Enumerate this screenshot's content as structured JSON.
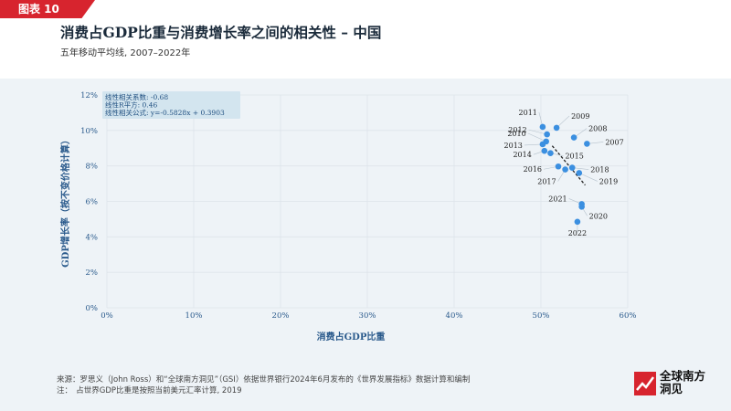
{
  "header": {
    "tag": "图表 10",
    "title": "消费占GDP比重与消费增长率之间的相关性 – 中国",
    "subtitle": "五年移动平均线, 2007–2022年"
  },
  "stats_box": {
    "line1": "线性相关系数: -0.68",
    "line2": "线性R平方: 0.46",
    "line3": "线性相关公式: y=-0.5828x + 0.3903"
  },
  "chart_data": {
    "type": "scatter",
    "xlabel": "消费占GDP比重",
    "ylabel": "GDP增长率（按不变价格计算）",
    "xlim": [
      0,
      0.6
    ],
    "ylim": [
      0,
      0.12
    ],
    "x_ticks": [
      "0%",
      "10%",
      "20%",
      "30%",
      "40%",
      "50%",
      "60%"
    ],
    "y_ticks": [
      "0%",
      "2%",
      "4%",
      "6%",
      "8%",
      "10%",
      "12%"
    ],
    "grid": true,
    "trendline": {
      "slope": -0.5828,
      "intercept": 0.3903,
      "x_range": [
        0.513,
        0.551
      ],
      "style": "dashed"
    },
    "points": [
      {
        "label": "2007",
        "x": 0.553,
        "y": 0.0925
      },
      {
        "label": "2008",
        "x": 0.538,
        "y": 0.096
      },
      {
        "label": "2009",
        "x": 0.518,
        "y": 0.1015
      },
      {
        "label": "2010",
        "x": 0.506,
        "y": 0.0938
      },
      {
        "label": "2011",
        "x": 0.502,
        "y": 0.102
      },
      {
        "label": "2012",
        "x": 0.507,
        "y": 0.0978
      },
      {
        "label": "2013",
        "x": 0.502,
        "y": 0.0922
      },
      {
        "label": "2014",
        "x": 0.504,
        "y": 0.0885
      },
      {
        "label": "2015",
        "x": 0.511,
        "y": 0.0872
      },
      {
        "label": "2016",
        "x": 0.52,
        "y": 0.0797
      },
      {
        "label": "2017",
        "x": 0.528,
        "y": 0.078
      },
      {
        "label": "2018",
        "x": 0.536,
        "y": 0.079
      },
      {
        "label": "2019",
        "x": 0.544,
        "y": 0.076
      },
      {
        "label": "2020",
        "x": 0.547,
        "y": 0.057
      },
      {
        "label": "2021",
        "x": 0.547,
        "y": 0.0585
      },
      {
        "label": "2022",
        "x": 0.542,
        "y": 0.0485
      }
    ],
    "colors": {
      "point": "#3b8fe0",
      "trend": "#222222",
      "axis_text": "#2a5a8c",
      "stats_bg": "#d3e5ef"
    }
  },
  "footer": {
    "source": "来源：罗思义（John Ross）和“全球南方洞见”（GSI）依据世界银行2024年6月发布的《世界发展指标》数据计算和编制",
    "note": "注：　占世界GDP比重是按照当前美元汇率计算, 2019",
    "logo_line1": "全球南方",
    "logo_line2": "洞见"
  }
}
